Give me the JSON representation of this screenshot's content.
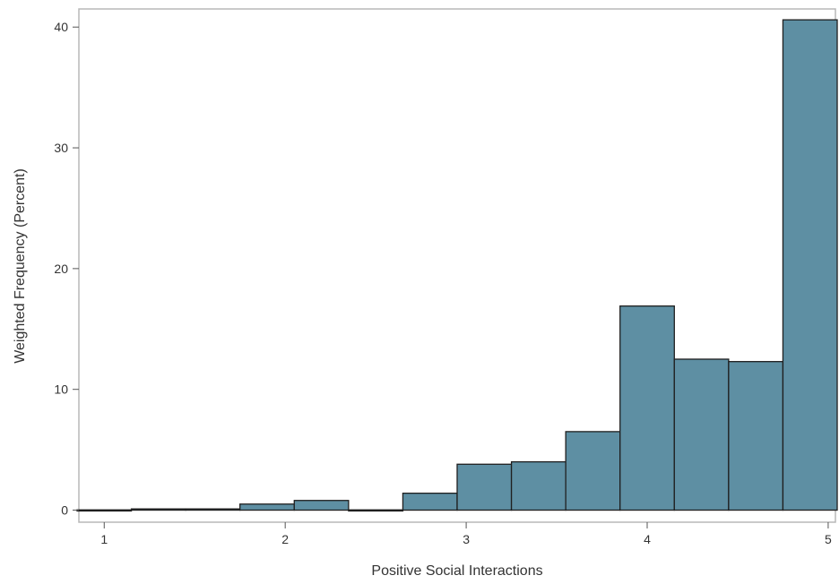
{
  "chart_data": {
    "type": "bar",
    "subtype": "histogram",
    "title": "",
    "xlabel": "Positive Social Interactions",
    "ylabel": "Weighted Frequency (Percent)",
    "xlim": [
      0.86,
      5.04
    ],
    "ylim": [
      -1.0,
      41.5
    ],
    "xticks": [
      1,
      2,
      3,
      4,
      5
    ],
    "yticks": [
      0,
      10,
      20,
      30,
      40
    ],
    "grid": false,
    "legend": "none",
    "bar_color": "#5E8FA3",
    "bar_edge_color": "#1F1F1F",
    "frame_color": "#B8B8B8",
    "bins": [
      {
        "x0": 0.85,
        "x1": 1.15,
        "value": 0.02
      },
      {
        "x0": 1.15,
        "x1": 1.45,
        "value": 0.1
      },
      {
        "x0": 1.45,
        "x1": 1.75,
        "value": 0.1
      },
      {
        "x0": 1.75,
        "x1": 2.05,
        "value": 0.5
      },
      {
        "x0": 2.05,
        "x1": 2.35,
        "value": 0.8
      },
      {
        "x0": 2.35,
        "x1": 2.65,
        "value": 0.02
      },
      {
        "x0": 2.65,
        "x1": 2.95,
        "value": 1.4
      },
      {
        "x0": 2.95,
        "x1": 3.25,
        "value": 3.8
      },
      {
        "x0": 3.25,
        "x1": 3.55,
        "value": 4.0
      },
      {
        "x0": 3.55,
        "x1": 3.85,
        "value": 6.5
      },
      {
        "x0": 3.85,
        "x1": 4.15,
        "value": 16.9
      },
      {
        "x0": 4.15,
        "x1": 4.45,
        "value": 12.5
      },
      {
        "x0": 4.45,
        "x1": 4.75,
        "value": 12.3
      },
      {
        "x0": 4.75,
        "x1": 5.05,
        "value": 40.6
      }
    ]
  }
}
